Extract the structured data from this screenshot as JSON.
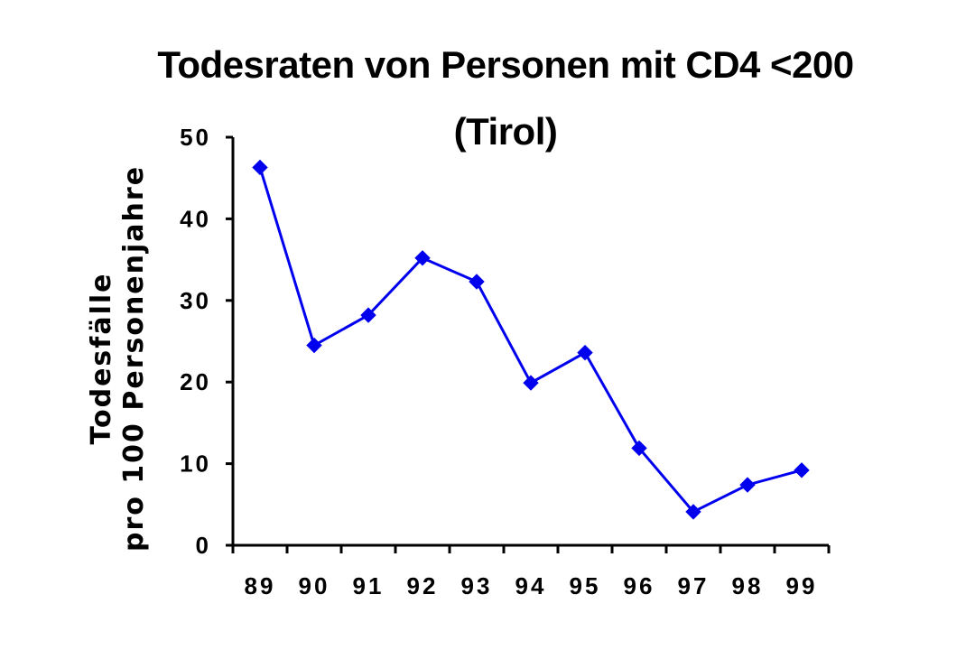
{
  "chart_data": {
    "type": "line",
    "title_line1": "Todesraten von Personen mit CD4 <200",
    "title_line2": "(Tirol)",
    "ylabel_line1": "Todesfälle",
    "ylabel_line2": "pro 100 Personenjahre",
    "xlabel": "",
    "categories": [
      "89",
      "90",
      "91",
      "92",
      "93",
      "94",
      "95",
      "96",
      "97",
      "98",
      "99"
    ],
    "ylim": [
      0,
      50
    ],
    "yticks": [
      "0",
      "10",
      "20",
      "30",
      "40",
      "50"
    ],
    "grid": false,
    "series": [
      {
        "values": [
          46.3,
          24.5,
          28.2,
          35.2,
          32.3,
          19.9,
          23.6,
          11.9,
          4.1,
          7.4,
          9.2
        ],
        "color": "#0000ee",
        "marker": "diamond"
      }
    ]
  }
}
